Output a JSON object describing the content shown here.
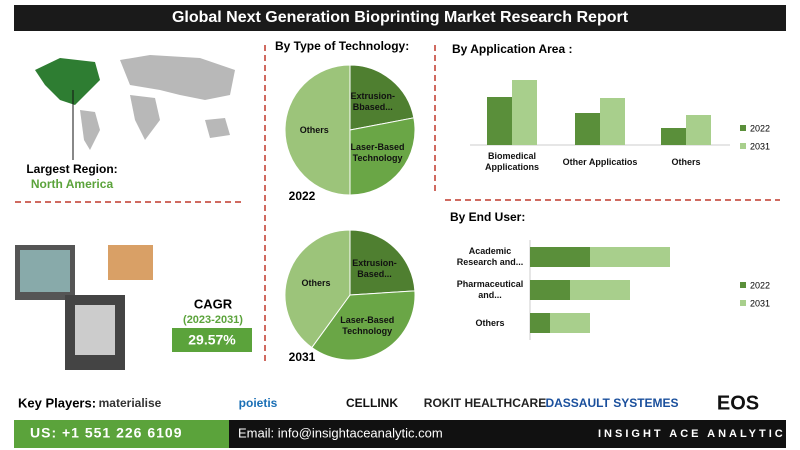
{
  "header": {
    "title": "Global Next Generation Bioprinting Market Research Report"
  },
  "region": {
    "label": "Largest Region:",
    "value": "North America"
  },
  "cagr": {
    "label": "CAGR",
    "period": "(2023-2031)",
    "value": "29.57%"
  },
  "key_players": {
    "label": "Key Players:",
    "companies": [
      "materialise",
      "poietis",
      "CELLINK",
      "ROKIT HEALTHCARE",
      "DASSAULT SYSTEMES",
      "EOS"
    ]
  },
  "footer": {
    "phone": "US: +1 551 226 6109",
    "email": "Email: info@insightaceanalytic.com",
    "brand": "INSIGHT ACE ANALYTIC"
  },
  "chart_data": [
    {
      "type": "pie",
      "title": "By Type of Technology:",
      "subtitle": "2022",
      "categories": [
        "Extrusion-Bbased...",
        "Laser-Based Technology",
        "Others"
      ],
      "values": [
        22,
        28,
        50
      ],
      "colors": [
        "#4f7f30",
        "#6aa646",
        "#9cc47a"
      ]
    },
    {
      "type": "pie",
      "subtitle": "2031",
      "categories": [
        "Extrusion-Based...",
        "Laser-Based Technology",
        "Others"
      ],
      "values": [
        24,
        36,
        40
      ],
      "colors": [
        "#4f7f30",
        "#6aa646",
        "#9cc47a"
      ]
    },
    {
      "type": "bar",
      "title": "By Application Area :",
      "categories": [
        "Biomedical Applications",
        "Other Applicatios",
        "Others"
      ],
      "series": [
        {
          "name": "2022",
          "color": "#5a8f3a",
          "values": [
            48,
            32,
            17
          ]
        },
        {
          "name": "2031",
          "color": "#a8cf8c",
          "values": [
            65,
            47,
            30
          ]
        }
      ],
      "legend": "right"
    },
    {
      "type": "stacked_barh",
      "title": "By End User:",
      "categories": [
        "Academic Research and...",
        "Pharmaceutical and...",
        "Others"
      ],
      "series": [
        {
          "name": "2022",
          "color": "#5a8f3a",
          "values": [
            60,
            40,
            20
          ]
        },
        {
          "name": "2031",
          "color": "#a8cf8c",
          "values": [
            80,
            60,
            40
          ]
        }
      ],
      "legend": "right"
    }
  ]
}
